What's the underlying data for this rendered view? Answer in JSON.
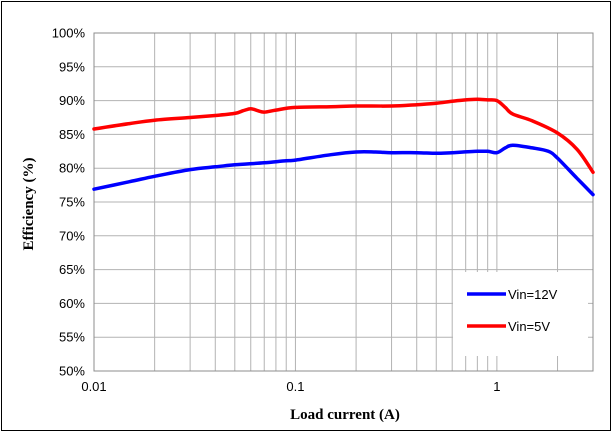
{
  "chart_data": {
    "type": "line",
    "title": "",
    "xlabel": "Load current (A)",
    "ylabel": "Efficiency (%)",
    "x_scale": "log",
    "xlim": [
      0.01,
      3
    ],
    "ylim": [
      50,
      100
    ],
    "x_ticks": [
      {
        "value": 0.01,
        "label": "0.01"
      },
      {
        "value": 0.1,
        "label": "0.1"
      },
      {
        "value": 1,
        "label": "1"
      }
    ],
    "y_ticks": [
      {
        "value": 100,
        "label": "100%"
      },
      {
        "value": 95,
        "label": "95%"
      },
      {
        "value": 90,
        "label": "90%"
      },
      {
        "value": 85,
        "label": "85%"
      },
      {
        "value": 80,
        "label": "80%"
      },
      {
        "value": 75,
        "label": "75%"
      },
      {
        "value": 70,
        "label": "70%"
      },
      {
        "value": 65,
        "label": "65%"
      },
      {
        "value": 60,
        "label": "60%"
      },
      {
        "value": 55,
        "label": "55%"
      },
      {
        "value": 50,
        "label": "50%"
      }
    ],
    "grid": true,
    "legend_position": "bottom-right",
    "series": [
      {
        "name": "Vin=12V",
        "color": "#0000ff",
        "x": [
          0.01,
          0.015,
          0.02,
          0.03,
          0.04,
          0.05,
          0.07,
          0.09,
          0.1,
          0.15,
          0.2,
          0.25,
          0.3,
          0.4,
          0.5,
          0.6,
          0.8,
          0.9,
          1.0,
          1.1,
          1.2,
          1.5,
          1.8,
          2.0,
          2.5,
          3.0
        ],
        "y": [
          76.9,
          78.0,
          78.8,
          79.8,
          80.2,
          80.5,
          80.8,
          81.1,
          81.2,
          82.0,
          82.4,
          82.4,
          82.3,
          82.3,
          82.2,
          82.3,
          82.5,
          82.5,
          82.3,
          83.0,
          83.4,
          83.0,
          82.5,
          81.5,
          78.5,
          76.1
        ]
      },
      {
        "name": "Vin=5V",
        "color": "#ff0000",
        "x": [
          0.01,
          0.015,
          0.02,
          0.03,
          0.04,
          0.05,
          0.055,
          0.06,
          0.065,
          0.07,
          0.08,
          0.1,
          0.15,
          0.2,
          0.3,
          0.4,
          0.5,
          0.6,
          0.7,
          0.8,
          0.9,
          1.0,
          1.1,
          1.2,
          1.5,
          2.0,
          2.5,
          3.0
        ],
        "y": [
          85.8,
          86.6,
          87.1,
          87.5,
          87.8,
          88.1,
          88.5,
          88.8,
          88.5,
          88.3,
          88.6,
          89.0,
          89.1,
          89.2,
          89.2,
          89.4,
          89.6,
          89.9,
          90.1,
          90.2,
          90.1,
          90.0,
          89.0,
          88.0,
          87.0,
          85.2,
          82.8,
          79.4
        ]
      }
    ]
  }
}
